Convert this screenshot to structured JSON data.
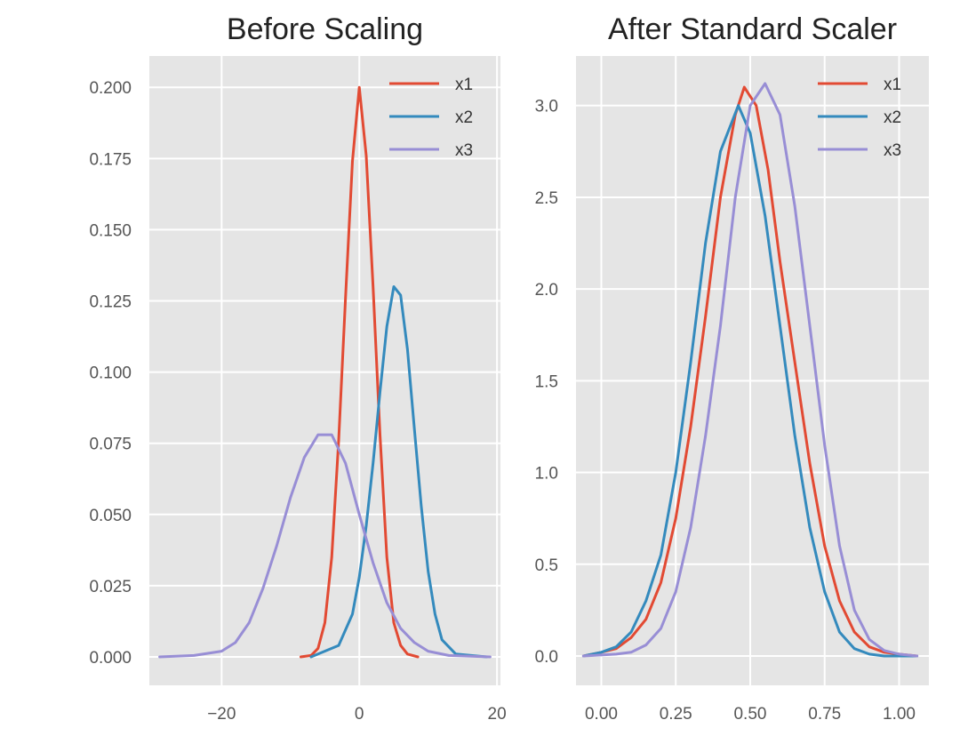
{
  "chart_data": [
    {
      "type": "line",
      "title": "Before Scaling",
      "xlabel": "",
      "ylabel": "",
      "xlim": [
        -30.5,
        20.5
      ],
      "ylim": [
        -0.01,
        0.211
      ],
      "xticks": [
        -20,
        0,
        20
      ],
      "xtick_labels": [
        "−20",
        "0",
        "20"
      ],
      "yticks": [
        0.0,
        0.025,
        0.05,
        0.075,
        0.1,
        0.125,
        0.15,
        0.175,
        0.2
      ],
      "ytick_labels": [
        "0.000",
        "0.025",
        "0.050",
        "0.075",
        "0.100",
        "0.125",
        "0.150",
        "0.175",
        "0.200"
      ],
      "grid": true,
      "legend_position": "top-right",
      "series": [
        {
          "name": "x1",
          "color": "#E24A33",
          "x": [
            -8.5,
            -7,
            -6,
            -5,
            -4,
            -3,
            -2,
            -1,
            0,
            1,
            2,
            3,
            4,
            5,
            6,
            7,
            8.5
          ],
          "y": [
            0.0,
            0.0005,
            0.003,
            0.012,
            0.035,
            0.076,
            0.126,
            0.174,
            0.2,
            0.176,
            0.13,
            0.078,
            0.035,
            0.012,
            0.004,
            0.001,
            0.0
          ]
        },
        {
          "name": "x2",
          "color": "#348ABD",
          "x": [
            -7,
            -3,
            -1,
            0,
            1,
            2,
            3,
            4,
            5,
            6,
            7,
            8,
            9,
            10,
            11,
            12,
            14,
            18.5
          ],
          "y": [
            0.0,
            0.004,
            0.015,
            0.028,
            0.046,
            0.068,
            0.093,
            0.116,
            0.13,
            0.127,
            0.108,
            0.08,
            0.053,
            0.03,
            0.015,
            0.006,
            0.001,
            0.0
          ]
        },
        {
          "name": "x3",
          "color": "#988ED5",
          "x": [
            -29,
            -24,
            -20,
            -18,
            -16,
            -14,
            -12,
            -10,
            -8,
            -6,
            -4,
            -2,
            0,
            2,
            4,
            6,
            8,
            10,
            13,
            19
          ],
          "y": [
            0.0,
            0.0005,
            0.002,
            0.005,
            0.012,
            0.024,
            0.039,
            0.056,
            0.07,
            0.078,
            0.078,
            0.068,
            0.05,
            0.033,
            0.019,
            0.01,
            0.005,
            0.002,
            0.0005,
            0.0
          ]
        }
      ]
    },
    {
      "type": "line",
      "title": "After Standard Scaler",
      "xlabel": "",
      "ylabel": "",
      "xlim": [
        -0.085,
        1.1
      ],
      "ylim": [
        -0.16,
        3.27
      ],
      "xticks": [
        0.0,
        0.25,
        0.5,
        0.75,
        1.0
      ],
      "xtick_labels": [
        "0.00",
        "0.25",
        "0.50",
        "0.75",
        "1.00"
      ],
      "yticks": [
        0.0,
        0.5,
        1.0,
        1.5,
        2.0,
        2.5,
        3.0
      ],
      "ytick_labels": [
        "0.0",
        "0.5",
        "1.0",
        "1.5",
        "2.0",
        "2.5",
        "3.0"
      ],
      "grid": true,
      "legend_position": "top-right",
      "series": [
        {
          "name": "x1",
          "color": "#E24A33",
          "x": [
            -0.06,
            0.0,
            0.05,
            0.1,
            0.15,
            0.2,
            0.25,
            0.3,
            0.35,
            0.4,
            0.45,
            0.48,
            0.52,
            0.56,
            0.6,
            0.65,
            0.7,
            0.75,
            0.8,
            0.85,
            0.9,
            0.95,
            1.0,
            1.06
          ],
          "y": [
            0.0,
            0.02,
            0.04,
            0.1,
            0.2,
            0.4,
            0.75,
            1.25,
            1.85,
            2.5,
            2.95,
            3.1,
            3.0,
            2.65,
            2.15,
            1.6,
            1.05,
            0.6,
            0.3,
            0.13,
            0.05,
            0.02,
            0.01,
            0.0
          ]
        },
        {
          "name": "x2",
          "color": "#348ABD",
          "x": [
            -0.06,
            0.0,
            0.05,
            0.1,
            0.15,
            0.2,
            0.25,
            0.3,
            0.35,
            0.4,
            0.46,
            0.5,
            0.55,
            0.6,
            0.65,
            0.7,
            0.75,
            0.8,
            0.85,
            0.9,
            0.95,
            1.06
          ],
          "y": [
            0.0,
            0.02,
            0.05,
            0.13,
            0.3,
            0.55,
            1.0,
            1.6,
            2.25,
            2.75,
            3.0,
            2.85,
            2.4,
            1.8,
            1.2,
            0.7,
            0.35,
            0.13,
            0.04,
            0.01,
            0.0,
            0.0
          ]
        },
        {
          "name": "x3",
          "color": "#988ED5",
          "x": [
            -0.06,
            0.05,
            0.1,
            0.15,
            0.2,
            0.25,
            0.3,
            0.35,
            0.4,
            0.45,
            0.5,
            0.55,
            0.6,
            0.65,
            0.7,
            0.75,
            0.8,
            0.85,
            0.9,
            0.95,
            1.0,
            1.06
          ],
          "y": [
            0.0,
            0.01,
            0.02,
            0.06,
            0.15,
            0.35,
            0.7,
            1.2,
            1.8,
            2.5,
            3.0,
            3.12,
            2.95,
            2.45,
            1.8,
            1.15,
            0.6,
            0.25,
            0.09,
            0.03,
            0.01,
            0.0
          ]
        }
      ]
    }
  ]
}
